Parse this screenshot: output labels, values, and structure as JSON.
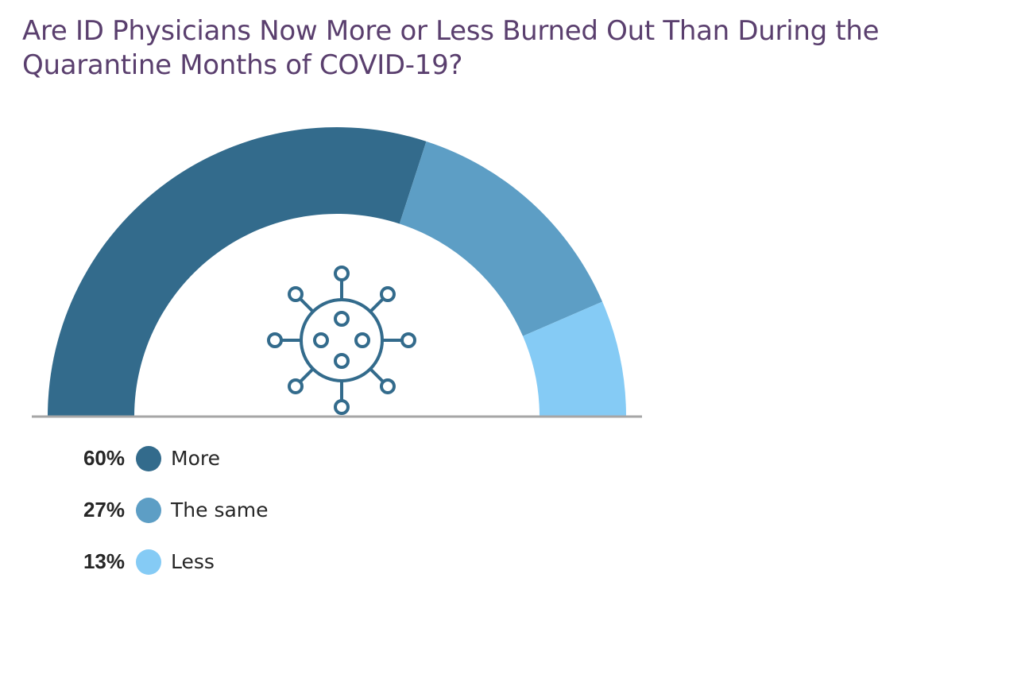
{
  "title": "Are ID Physicians Now More or Less Burned Out Than During the Quarantine Months of COVID-19?",
  "icon": "virus-icon",
  "colors": {
    "title": "#5a3f6e",
    "icon": "#336b8c",
    "baseline": "#a6a6a6"
  },
  "chart_data": {
    "type": "pie",
    "variant": "half-donut",
    "title": "Are ID Physicians Now More or Less Burned Out Than During the Quarantine Months of COVID-19?",
    "unit": "%",
    "slices": [
      {
        "label": "More",
        "value": 60,
        "display": "60%",
        "color": "#336b8c"
      },
      {
        "label": "The same",
        "value": 27,
        "display": "27%",
        "color": "#5d9ec5"
      },
      {
        "label": "Less",
        "value": 13,
        "display": "13%",
        "color": "#85cbf5"
      }
    ],
    "legend_position": "bottom-left"
  }
}
